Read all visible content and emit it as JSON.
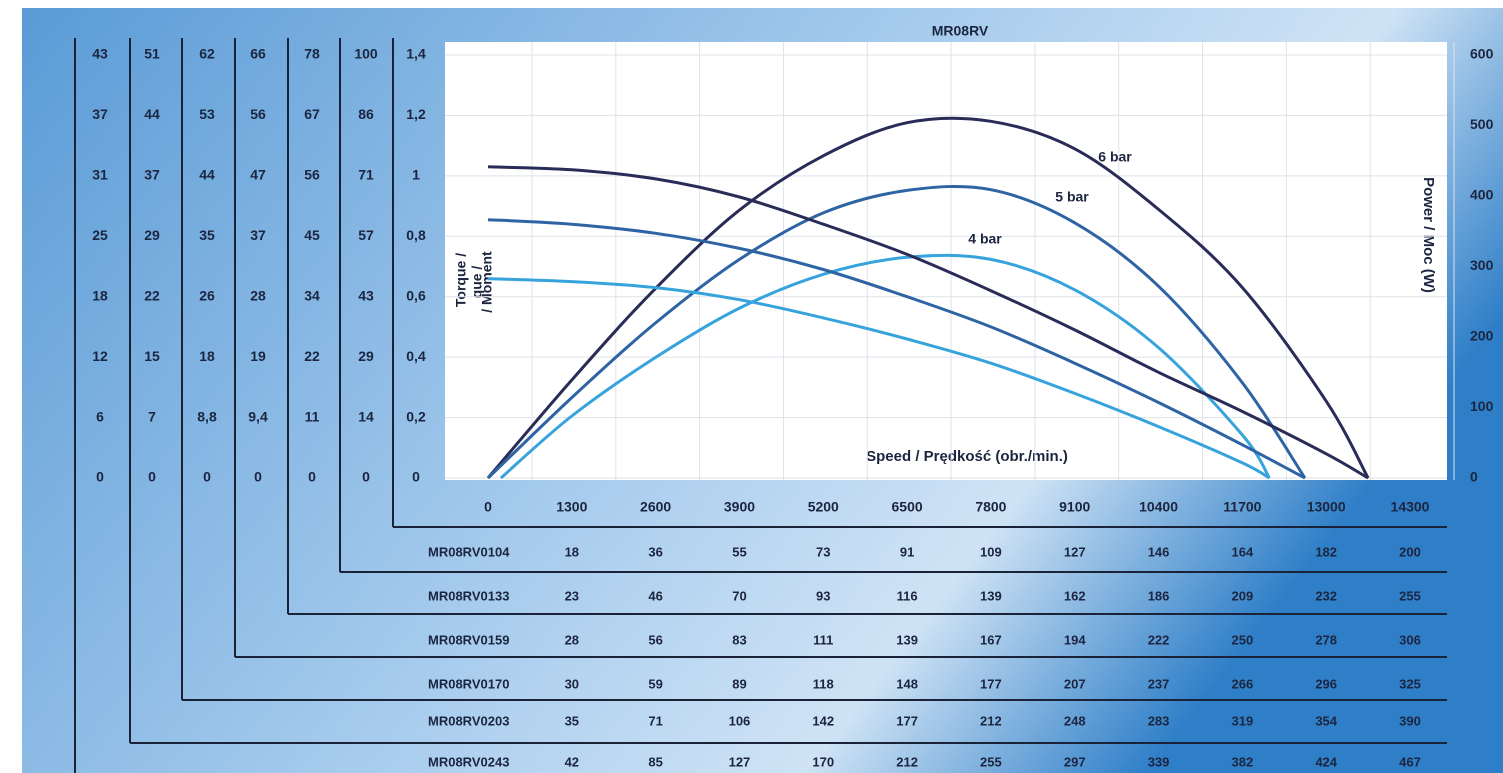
{
  "chart_data": {
    "type": "line",
    "title": "MR08RV",
    "x_label": "Speed / Prędkość (obr./min.)",
    "y_label": [
      "Torque /",
      "que /",
      "/ Moment"
    ],
    "y2_label": "Power / Moc (W)",
    "xlim": [
      0,
      14300
    ],
    "xticks": [
      0,
      1300,
      2600,
      3900,
      5200,
      6500,
      7800,
      9100,
      10400,
      11700,
      13000,
      14300
    ],
    "ylim": [
      0,
      1.4
    ],
    "yticks": [
      0,
      {
        "value": 0.2,
        "label": "0,2"
      },
      {
        "value": 0.4,
        "label": "0,4"
      },
      {
        "value": 0.6,
        "label": "0,6"
      },
      {
        "value": 0.8,
        "label": "0,8"
      },
      1,
      {
        "value": 1.2,
        "label": "1,2"
      },
      {
        "value": 1.4,
        "label": "1,4"
      }
    ],
    "y2lim": [
      0,
      600
    ],
    "y2ticks": [
      0,
      100,
      200,
      300,
      400,
      500,
      600
    ],
    "grid": true,
    "series": [
      {
        "name": "6 bar",
        "color": "#2a2c58",
        "axis": "y2",
        "x": [
          0,
          1300,
          2600,
          3900,
          5200,
          6500,
          7800,
          9100,
          10400,
          11700,
          13000,
          13650
        ],
        "values": [
          0,
          139,
          269,
          380,
          457,
          504,
          506,
          467,
          381,
          270,
          109,
          0
        ]
      },
      {
        "name": "5 bar",
        "color": "#2e63a4",
        "axis": "y2",
        "x": [
          0,
          1300,
          2600,
          3900,
          5200,
          6500,
          7800,
          9100,
          10400,
          11700,
          12670
        ],
        "values": [
          0,
          114,
          220,
          310,
          376,
          408,
          409,
          362,
          272,
          135,
          0
        ]
      },
      {
        "name": "4 bar",
        "color": "#37a3dc",
        "axis": "y2",
        "x": [
          200,
          1300,
          2600,
          3900,
          5200,
          6500,
          7800,
          9100,
          10400,
          11700,
          12120
        ],
        "values": [
          0,
          88,
          171,
          241,
          289,
          313,
          310,
          267,
          185,
          61,
          0
        ]
      },
      {
        "color": "#2a2c58",
        "axis": "y",
        "x": [
          0,
          1300,
          2600,
          3900,
          5200,
          6500,
          7800,
          9100,
          10400,
          11700,
          13000,
          13650
        ],
        "values": [
          1.03,
          1.02,
          0.99,
          0.93,
          0.84,
          0.74,
          0.62,
          0.49,
          0.35,
          0.22,
          0.08,
          0
        ]
      },
      {
        "color": "#2e63a4",
        "axis": "y",
        "x": [
          0,
          1300,
          2600,
          3900,
          5200,
          6500,
          7800,
          9100,
          10400,
          11700,
          12670
        ],
        "values": [
          0.855,
          0.84,
          0.81,
          0.76,
          0.69,
          0.6,
          0.5,
          0.38,
          0.25,
          0.11,
          0
        ]
      },
      {
        "color": "#37a3dc",
        "axis": "y",
        "x": [
          0,
          1300,
          2600,
          3900,
          5200,
          6500,
          7800,
          9100,
          10400,
          11700,
          12120
        ],
        "values": [
          0.66,
          0.65,
          0.63,
          0.59,
          0.53,
          0.46,
          0.38,
          0.28,
          0.17,
          0.05,
          0
        ]
      }
    ],
    "models": [
      {
        "name": "MR08RV0104",
        "torque_ticks": [
          0,
          14,
          29,
          43,
          57,
          71,
          86,
          100
        ],
        "values": [
          18,
          36,
          55,
          73,
          91,
          109,
          127,
          146,
          164,
          182,
          200
        ]
      },
      {
        "name": "MR08RV0133",
        "torque_ticks": [
          0,
          11,
          22,
          34,
          45,
          56,
          67,
          78
        ],
        "values": [
          23,
          46,
          70,
          93,
          116,
          139,
          162,
          186,
          209,
          232,
          255
        ]
      },
      {
        "name": "MR08RV0159",
        "torque_ticks": [
          0,
          {
            "value": 9.4,
            "label": "9,4"
          },
          19,
          28,
          37,
          47,
          56,
          66
        ],
        "values": [
          28,
          56,
          83,
          111,
          139,
          167,
          194,
          222,
          250,
          278,
          306
        ]
      },
      {
        "name": "MR08RV0170",
        "torque_ticks": [
          0,
          {
            "value": 8.8,
            "label": "8,8"
          },
          18,
          26,
          35,
          44,
          53,
          62
        ],
        "values": [
          30,
          59,
          89,
          118,
          148,
          177,
          207,
          237,
          266,
          296,
          325
        ]
      },
      {
        "name": "MR08RV0203",
        "torque_ticks": [
          0,
          7,
          15,
          22,
          29,
          37,
          44,
          51
        ],
        "values": [
          35,
          71,
          106,
          142,
          177,
          212,
          248,
          283,
          319,
          354,
          390
        ]
      },
      {
        "name": "MR08RV0243",
        "torque_ticks": [
          0,
          6,
          12,
          18,
          25,
          31,
          37,
          43
        ],
        "values": [
          42,
          85,
          127,
          170,
          212,
          255,
          297,
          339,
          382,
          424,
          467
        ]
      }
    ]
  }
}
